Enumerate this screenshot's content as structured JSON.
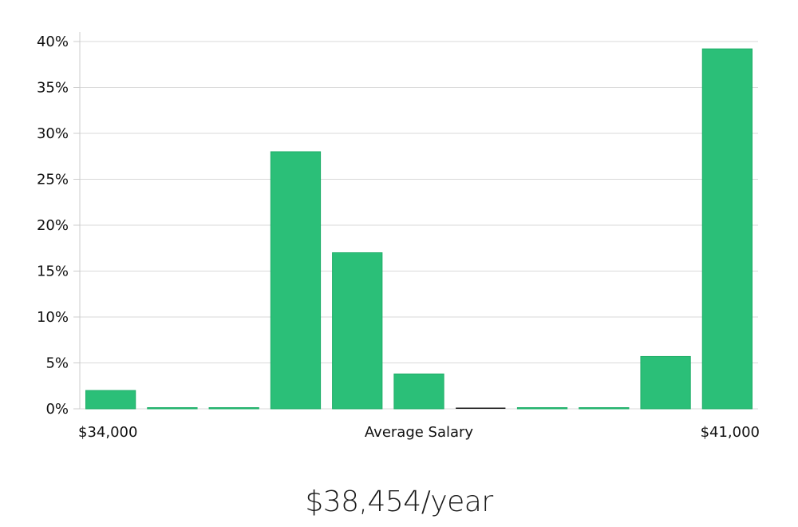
{
  "chart_data": {
    "type": "bar",
    "xlabel": "Average Salary",
    "x_start_label": "$34,000",
    "x_end_label": "$41,000",
    "categories": [
      "1",
      "2",
      "3",
      "4",
      "5",
      "6",
      "7",
      "8",
      "9",
      "10",
      "11"
    ],
    "values": [
      2,
      0,
      0,
      28,
      17,
      3.8,
      0,
      0,
      0,
      5.7,
      39.2
    ],
    "ylim": [
      0,
      40
    ],
    "yticks": [
      0,
      5,
      10,
      15,
      20,
      25,
      30,
      35,
      40
    ],
    "ytick_labels": [
      "0%",
      "5%",
      "10%",
      "15%",
      "20%",
      "25%",
      "30%",
      "35%",
      "40%"
    ],
    "grid": true,
    "highlight_index": 6,
    "colors": {
      "bar": "#2bbf78",
      "bar_edge": "#1fae68",
      "highlight": "#1a1a1a",
      "grid": "#d9d9d9",
      "axis": "#cccccc"
    }
  },
  "summary": {
    "average_salary": "$38,454/year"
  }
}
